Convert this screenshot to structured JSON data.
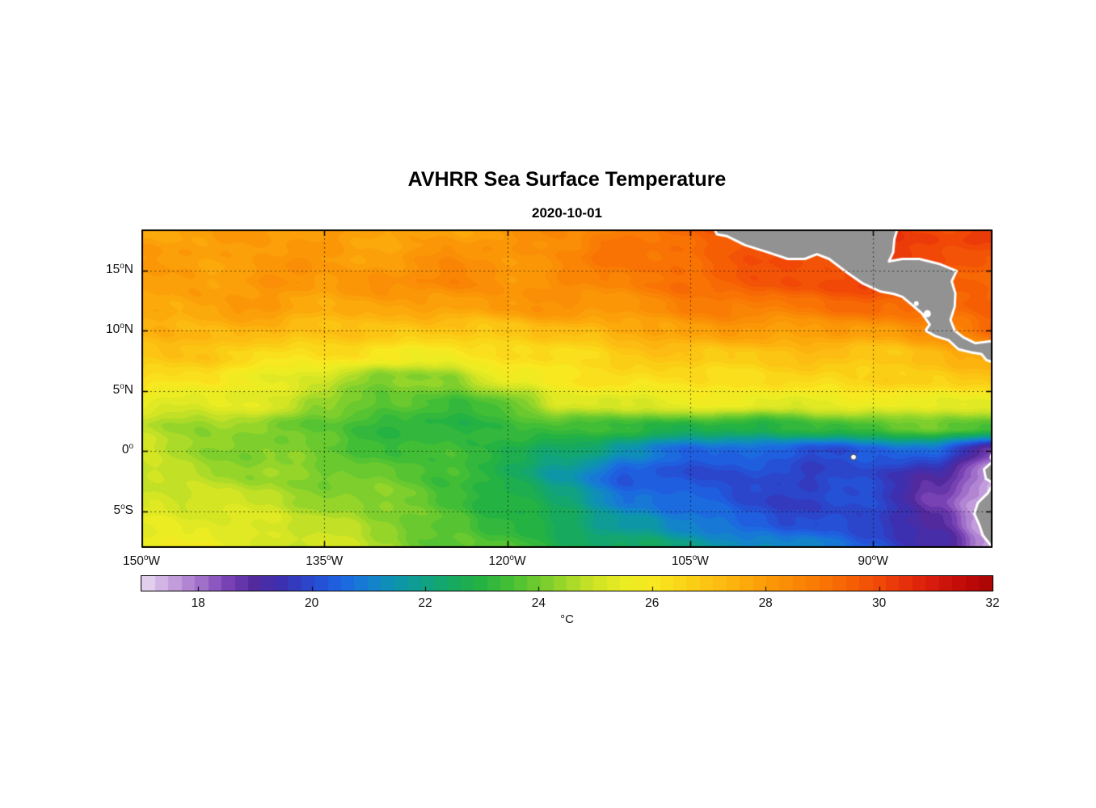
{
  "title": "AVHRR Sea Surface Temperature",
  "subtitle": "2020-10-01",
  "chart_data": {
    "type": "heatmap",
    "title": "AVHRR Sea Surface Temperature",
    "subtitle": "2020-10-01",
    "x_axis": {
      "range_deg": [
        -150,
        -80.2
      ],
      "ticks": [
        {
          "num": "150",
          "hem": "W",
          "deg": -150
        },
        {
          "num": "135",
          "hem": "W",
          "deg": -135
        },
        {
          "num": "120",
          "hem": "W",
          "deg": -120
        },
        {
          "num": "105",
          "hem": "W",
          "deg": -105
        },
        {
          "num": "90",
          "hem": "W",
          "deg": -90
        }
      ]
    },
    "y_axis": {
      "range_deg": [
        -8.04,
        18.4
      ],
      "ticks": [
        {
          "num": "15",
          "hem": "N",
          "deg": 15
        },
        {
          "num": "10",
          "hem": "N",
          "deg": 10
        },
        {
          "num": "5",
          "hem": "N",
          "deg": 5
        },
        {
          "num": "0",
          "hem": "",
          "deg": 0
        },
        {
          "num": "5",
          "hem": "S",
          "deg": -5
        }
      ]
    },
    "colorbar": {
      "unit": "°C",
      "range": [
        17,
        32
      ],
      "tick_values": [
        18,
        20,
        22,
        24,
        26,
        28,
        30,
        32
      ],
      "levels": 64
    },
    "colormap_stops": [
      [
        17.0,
        "#e8dcf2"
      ],
      [
        17.5,
        "#c9a4de"
      ],
      [
        18.0,
        "#a474cc"
      ],
      [
        18.5,
        "#7a42b5"
      ],
      [
        19.0,
        "#512a9e"
      ],
      [
        19.5,
        "#3a31b2"
      ],
      [
        20.0,
        "#2948cf"
      ],
      [
        20.5,
        "#1e64e4"
      ],
      [
        21.0,
        "#1480d0"
      ],
      [
        21.5,
        "#0d95ac"
      ],
      [
        22.0,
        "#10a184"
      ],
      [
        22.5,
        "#17aa5e"
      ],
      [
        23.0,
        "#25b242"
      ],
      [
        23.5,
        "#46bf34"
      ],
      [
        24.0,
        "#70cb2e"
      ],
      [
        24.5,
        "#a0d829"
      ],
      [
        25.0,
        "#cfe425"
      ],
      [
        25.5,
        "#eaec22"
      ],
      [
        26.0,
        "#f8e91f"
      ],
      [
        26.5,
        "#fbd719"
      ],
      [
        27.0,
        "#fcc313"
      ],
      [
        27.5,
        "#fcb00d"
      ],
      [
        28.0,
        "#fb9c08"
      ],
      [
        28.5,
        "#fa8905"
      ],
      [
        29.0,
        "#f97604"
      ],
      [
        29.5,
        "#f66004"
      ],
      [
        30.0,
        "#f14807"
      ],
      [
        30.5,
        "#e52e0b"
      ],
      [
        31.0,
        "#d5190d"
      ],
      [
        31.5,
        "#c00a08"
      ],
      [
        32.0,
        "#a90404"
      ]
    ],
    "grid": {
      "lons": [
        -150,
        -145,
        -140,
        -135,
        -130,
        -125,
        -120,
        -115,
        -110,
        -105,
        -100,
        -95,
        -90,
        -85,
        -80
      ],
      "lats": [
        -8,
        -6,
        -4,
        -2,
        0,
        2,
        4,
        6,
        8,
        10,
        12,
        14,
        16,
        18
      ],
      "sst_c": [
        [
          25.6,
          25.5,
          25.3,
          25.0,
          24.5,
          23.9,
          23.4,
          22.9,
          22.4,
          21.9,
          21.4,
          20.9,
          20.4,
          19.2,
          17.4
        ],
        [
          25.5,
          25.3,
          25.1,
          24.8,
          24.3,
          23.8,
          23.2,
          22.5,
          21.5,
          20.9,
          20.4,
          20.1,
          20.0,
          19.0,
          17.3
        ],
        [
          25.3,
          25.1,
          24.8,
          24.5,
          24.1,
          23.6,
          23.0,
          22.0,
          20.9,
          20.4,
          20.0,
          19.9,
          19.9,
          18.8,
          17.2
        ],
        [
          25.1,
          24.8,
          24.4,
          24.1,
          23.8,
          23.4,
          22.8,
          21.5,
          20.4,
          20.0,
          19.9,
          19.8,
          19.9,
          19.2,
          17.6
        ],
        [
          24.8,
          24.5,
          24.1,
          23.8,
          23.5,
          23.2,
          23.0,
          22.3,
          21.3,
          20.7,
          20.4,
          20.2,
          20.4,
          20.4,
          18.8
        ],
        [
          24.6,
          24.3,
          24.2,
          23.7,
          23.3,
          23.1,
          23.2,
          23.4,
          23.1,
          22.9,
          23.0,
          23.3,
          23.6,
          23.9,
          23.4
        ],
        [
          25.6,
          25.4,
          25.2,
          24.6,
          23.6,
          23.4,
          23.9,
          25.0,
          25.4,
          25.5,
          25.5,
          25.5,
          25.5,
          25.7,
          25.4
        ],
        [
          26.3,
          26.1,
          25.7,
          25.1,
          24.1,
          24.3,
          25.4,
          26.1,
          26.4,
          26.4,
          26.4,
          26.4,
          26.5,
          26.7,
          26.9
        ],
        [
          27.0,
          26.8,
          26.5,
          26.2,
          26.0,
          26.0,
          26.2,
          26.5,
          26.8,
          26.9,
          27.0,
          27.0,
          27.0,
          27.2,
          27.6
        ],
        [
          27.5,
          27.4,
          27.2,
          27.0,
          27.0,
          27.0,
          27.0,
          27.2,
          27.5,
          27.8,
          28.0,
          28.0,
          28.1,
          28.4,
          29.3
        ],
        [
          27.9,
          27.8,
          28.0,
          27.8,
          27.6,
          27.9,
          28.1,
          28.1,
          28.3,
          28.6,
          28.8,
          29.0,
          29.2,
          29.5,
          29.4
        ],
        [
          28.0,
          28.0,
          28.2,
          28.0,
          28.2,
          28.5,
          28.3,
          28.5,
          28.8,
          29.2,
          29.5,
          29.9,
          30.1,
          29.6,
          29.5
        ],
        [
          27.8,
          28.0,
          28.0,
          28.0,
          28.0,
          28.2,
          28.2,
          28.5,
          29.0,
          29.4,
          29.7,
          30.0,
          30.0,
          29.8,
          29.9
        ],
        [
          27.6,
          27.8,
          28.0,
          28.0,
          27.9,
          28.0,
          28.1,
          28.4,
          28.8,
          29.3,
          29.8,
          30.2,
          30.4,
          30.0,
          30.1
        ]
      ]
    },
    "land": {
      "color": "#929292",
      "coast_outline": "#ffffff",
      "polygons": {
        "central_america": [
          [
            -103.2,
            18.8
          ],
          [
            -102.8,
            18.0
          ],
          [
            -102.0,
            17.85
          ],
          [
            -100.5,
            17.1
          ],
          [
            -98.6,
            16.5
          ],
          [
            -97.0,
            15.95
          ],
          [
            -95.6,
            15.95
          ],
          [
            -94.6,
            16.35
          ],
          [
            -93.6,
            15.95
          ],
          [
            -92.3,
            14.95
          ],
          [
            -90.9,
            13.95
          ],
          [
            -89.4,
            13.25
          ],
          [
            -88.3,
            13.05
          ],
          [
            -87.6,
            12.8
          ],
          [
            -87.0,
            12.3
          ],
          [
            -86.0,
            11.45
          ],
          [
            -85.35,
            10.5
          ],
          [
            -85.7,
            10.0
          ],
          [
            -84.9,
            9.55
          ],
          [
            -83.8,
            9.2
          ],
          [
            -83.0,
            8.45
          ],
          [
            -82.0,
            8.2
          ],
          [
            -81.1,
            8.05
          ],
          [
            -80.7,
            7.55
          ],
          [
            -80.1,
            7.35
          ],
          [
            -79.5,
            7.6
          ],
          [
            -78.5,
            7.1
          ],
          [
            -76.5,
            6.2
          ],
          [
            -76.5,
            9.2
          ],
          [
            -78.9,
            9.45
          ],
          [
            -80.1,
            9.15
          ],
          [
            -81.6,
            8.95
          ],
          [
            -82.6,
            9.45
          ],
          [
            -83.3,
            10.0
          ],
          [
            -83.65,
            10.9
          ],
          [
            -83.3,
            12.0
          ],
          [
            -83.25,
            13.1
          ],
          [
            -83.55,
            14.1
          ],
          [
            -83.15,
            14.95
          ],
          [
            -84.6,
            15.55
          ],
          [
            -86.2,
            15.95
          ],
          [
            -87.6,
            15.95
          ],
          [
            -88.7,
            15.75
          ],
          [
            -88.35,
            16.5
          ],
          [
            -88.25,
            17.6
          ],
          [
            -87.9,
            18.8
          ]
        ],
        "south_america": [
          [
            -76.5,
            1.0
          ],
          [
            -80.1,
            0.2
          ],
          [
            -80.35,
            -0.5
          ],
          [
            -80.2,
            -0.9
          ],
          [
            -80.9,
            -1.5
          ],
          [
            -80.75,
            -2.3
          ],
          [
            -80.1,
            -2.7
          ],
          [
            -80.6,
            -3.5
          ],
          [
            -81.4,
            -4.3
          ],
          [
            -81.7,
            -5.2
          ],
          [
            -81.3,
            -6.1
          ],
          [
            -81.0,
            -7.0
          ],
          [
            -80.3,
            -7.9
          ],
          [
            -79.7,
            -9.0
          ],
          [
            -76.5,
            -9.0
          ]
        ]
      },
      "lakes": [
        {
          "lon": -86.45,
          "lat": 12.25,
          "r": 3
        },
        {
          "lon": -85.55,
          "lat": 11.4,
          "r": 4.5
        }
      ]
    },
    "islands": [
      {
        "name": "galapagos",
        "lon": -91.6,
        "lat": -0.5
      }
    ]
  }
}
